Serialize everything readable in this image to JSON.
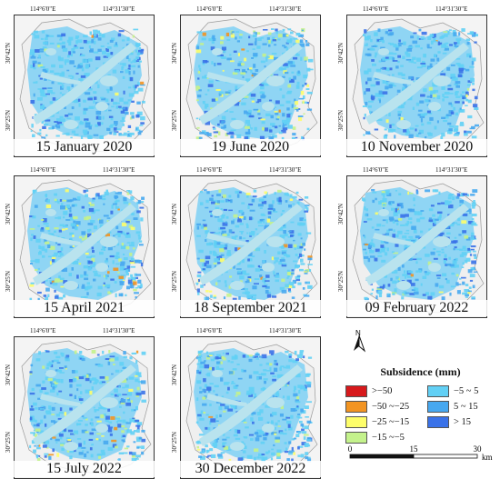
{
  "axis_labels": {
    "lon_left": "114°6'0\"E",
    "lon_right": "114°31'30\"E",
    "lat_top": "30°42'N",
    "lat_bottom": "30°25'N"
  },
  "panels": [
    {
      "date": "15 January 2020"
    },
    {
      "date": "19 June 2020"
    },
    {
      "date": "10 November 2020"
    },
    {
      "date": "15 April 2021"
    },
    {
      "date": "18 September 2021"
    },
    {
      "date": "09 February 2022"
    },
    {
      "date": "15 July 2022"
    },
    {
      "date": "30 December 2022"
    }
  ],
  "north_arrow": {
    "label": "N"
  },
  "legend": {
    "title": "Subsidence (mm)",
    "items": [
      {
        "label": ">−50",
        "color": "#d7191c"
      },
      {
        "label": "−50 ~−25",
        "color": "#f29422"
      },
      {
        "label": "−25 ~−15",
        "color": "#fefe6a"
      },
      {
        "label": "−15 ~−5",
        "color": "#c4f28c"
      },
      {
        "label": "−5 ~ 5",
        "color": "#62d0f5"
      },
      {
        "label": "5 ~ 15",
        "color": "#47a8f0"
      },
      {
        "label": "> 15",
        "color": "#3a72e8"
      }
    ]
  },
  "scale_bar": {
    "ticks": [
      "0",
      "15",
      "30"
    ],
    "unit": "km"
  },
  "colors": {
    "river": "#b9e3ee",
    "background_land": "#efefef",
    "outline": "#9a9a9a"
  }
}
